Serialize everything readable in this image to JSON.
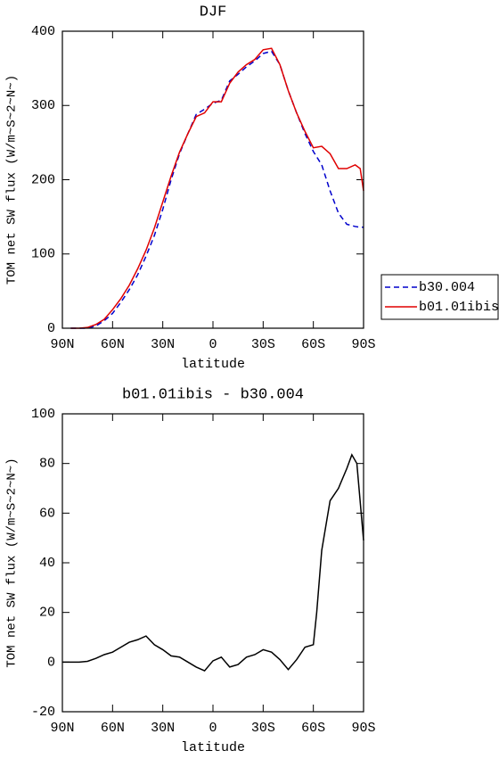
{
  "chart_data": [
    {
      "type": "line",
      "title": "DJF",
      "xlabel": "latitude",
      "ylabel": "TOM net SW flux (W/m~S~2~N~)",
      "x": [
        85,
        80,
        75,
        70,
        65,
        60,
        55,
        50,
        45,
        40,
        35,
        30,
        25,
        20,
        15,
        10,
        5,
        0,
        -5,
        -10,
        -15,
        -20,
        -25,
        -30,
        -35,
        -40,
        -45,
        -50,
        -55,
        -60,
        -65,
        -70,
        -75,
        -80,
        -85,
        -88,
        -90
      ],
      "series": [
        {
          "name": "b30.004",
          "color": "#0000cc",
          "dash": "dashed",
          "values": [
            0,
            0,
            0,
            3,
            10,
            20,
            35,
            52,
            72,
            97,
            125,
            160,
            200,
            235,
            262,
            288,
            295,
            303,
            307,
            333,
            342,
            352,
            360,
            370,
            373,
            355,
            320,
            290,
            262,
            238,
            220,
            185,
            155,
            140,
            137,
            136,
            136
          ]
        },
        {
          "name": "b01.01ibis",
          "color": "#e00000",
          "dash": "solid",
          "values": [
            0,
            0,
            1,
            5,
            12,
            25,
            40,
            58,
            80,
            105,
            135,
            170,
            205,
            237,
            262,
            285,
            290,
            305,
            305,
            330,
            345,
            355,
            362,
            375,
            377,
            355,
            320,
            290,
            265,
            243,
            245,
            235,
            215,
            215,
            220,
            215,
            185
          ]
        }
      ],
      "xlim": [
        90,
        -90
      ],
      "xticks": [
        {
          "value": 90,
          "label": "90N"
        },
        {
          "value": 60,
          "label": "60N"
        },
        {
          "value": 30,
          "label": "30N"
        },
        0,
        {
          "value": -30,
          "label": "30S"
        },
        {
          "value": -60,
          "label": "60S"
        },
        {
          "value": -90,
          "label": "90S"
        }
      ],
      "ylim": [
        0,
        400
      ],
      "yticks": [
        0,
        100,
        200,
        300,
        400
      ],
      "legend": "right"
    },
    {
      "type": "line",
      "title": "b01.01ibis - b30.004",
      "xlabel": "latitude",
      "ylabel": "TOM net SW flux (W/m~S~2~N~)",
      "x": [
        90,
        85,
        80,
        75,
        70,
        65,
        60,
        55,
        50,
        45,
        40,
        35,
        30,
        25,
        20,
        15,
        10,
        5,
        0,
        -5,
        -10,
        -15,
        -20,
        -25,
        -30,
        -35,
        -40,
        -45,
        -50,
        -55,
        -60,
        -62,
        -65,
        -68,
        -70,
        -75,
        -80,
        -83,
        -86,
        -90
      ],
      "color": "#000000",
      "values": [
        0,
        0,
        0,
        0.3,
        1.5,
        3,
        4,
        6,
        8,
        9,
        10.5,
        7,
        5,
        2.5,
        2,
        0,
        -2,
        -3.5,
        0.5,
        2,
        -2,
        -1,
        2,
        3,
        5,
        4,
        1,
        -3,
        1,
        6,
        7,
        20,
        45,
        57,
        65,
        70,
        78,
        83.5,
        80,
        49
      ],
      "xlim": [
        90,
        -90
      ],
      "xticks": [
        {
          "value": 90,
          "label": "90N"
        },
        {
          "value": 60,
          "label": "60N"
        },
        {
          "value": 30,
          "label": "30N"
        },
        0,
        {
          "value": -30,
          "label": "30S"
        },
        {
          "value": -60,
          "label": "60S"
        },
        {
          "value": -90,
          "label": "90S"
        }
      ],
      "ylim": [
        -20,
        100
      ],
      "yticks": [
        -20,
        0,
        20,
        40,
        60,
        80,
        100
      ]
    }
  ]
}
